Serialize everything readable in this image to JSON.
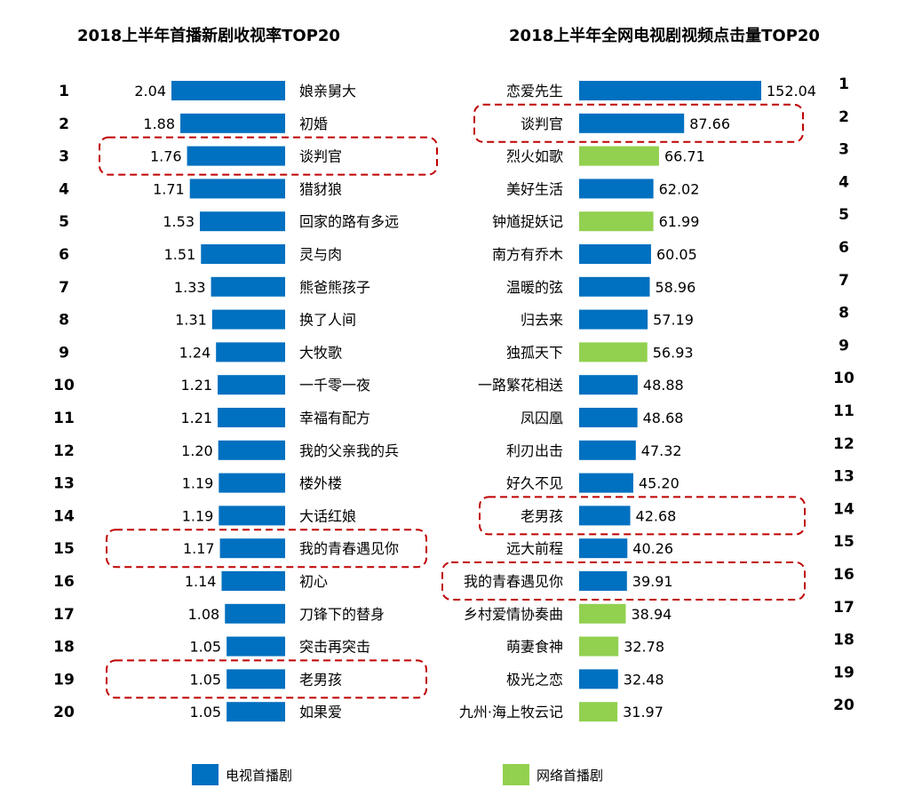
{
  "colors": {
    "tv": "#0070C0",
    "web": "#92D050",
    "highlight": "#C00000"
  },
  "legend": {
    "tv": "电视首播剧",
    "web": "网络首播剧"
  },
  "chart_data": [
    {
      "type": "bar",
      "title": "2018上半年首播新剧收视率TOP20",
      "ranks": [
        "1",
        "2",
        "3",
        "4",
        "5",
        "6",
        "7",
        "8",
        "9",
        "10",
        "11",
        "12",
        "13",
        "14",
        "15",
        "16",
        "17",
        "18",
        "19",
        "20"
      ],
      "categories": [
        "娘亲舅大",
        "初婚",
        "谈判官",
        "猎豺狼",
        "回家的路有多远",
        "灵与肉",
        "熊爸熊孩子",
        "换了人间",
        "大牧歌",
        "一千零一夜",
        "幸福有配方",
        "我的父亲我的兵",
        "楼外楼",
        "大话红娘",
        "我的青春遇见你",
        "初心",
        "刀锋下的替身",
        "突击再突击",
        "老男孩",
        "如果爱"
      ],
      "values": [
        2.04,
        1.88,
        1.76,
        1.71,
        1.53,
        1.51,
        1.33,
        1.31,
        1.24,
        1.21,
        1.21,
        1.2,
        1.19,
        1.19,
        1.17,
        1.14,
        1.08,
        1.05,
        1.05,
        1.05
      ],
      "labels": [
        "2.04",
        "1.88",
        "1.76",
        "1.71",
        "1.53",
        "1.51",
        "1.33",
        "1.31",
        "1.24",
        "1.21",
        "1.21",
        "1.20",
        "1.19",
        "1.19",
        "1.17",
        "1.14",
        "1.08",
        "1.05",
        "1.05",
        "1.05"
      ],
      "kinds": [
        "tv",
        "tv",
        "tv",
        "tv",
        "tv",
        "tv",
        "tv",
        "tv",
        "tv",
        "tv",
        "tv",
        "tv",
        "tv",
        "tv",
        "tv",
        "tv",
        "tv",
        "tv",
        "tv",
        "tv"
      ],
      "highlighted": [
        "谈判官",
        "我的青春遇见你",
        "老男孩"
      ]
    },
    {
      "type": "bar",
      "title": "2018上半年全网电视剧视频点击量TOP20",
      "ranks": [
        "1",
        "2",
        "3",
        "4",
        "5",
        "6",
        "7",
        "8",
        "9",
        "10",
        "11",
        "12",
        "13",
        "14",
        "15",
        "16",
        "17",
        "18",
        "19",
        "20"
      ],
      "categories": [
        "恋爱先生",
        "谈判官",
        "烈火如歌",
        "美好生活",
        "钟馗捉妖记",
        "南方有乔木",
        "温暖的弦",
        "归去来",
        "独孤天下",
        "一路繁花相送",
        "凤囚凰",
        "利刃出击",
        "好久不见",
        "老男孩",
        "远大前程",
        "我的青春遇见你",
        "乡村爱情协奏曲",
        "萌妻食神",
        "极光之恋",
        "九州·海上牧云记"
      ],
      "values": [
        152.04,
        87.66,
        66.71,
        62.02,
        61.99,
        60.05,
        58.96,
        57.19,
        56.93,
        48.88,
        48.68,
        47.32,
        45.2,
        42.68,
        40.26,
        39.91,
        38.94,
        32.78,
        32.48,
        31.97
      ],
      "labels": [
        "152.04",
        "87.66",
        "66.71",
        "62.02",
        "61.99",
        "60.05",
        "58.96",
        "57.19",
        "56.93",
        "48.88",
        "48.68",
        "47.32",
        "45.20",
        "42.68",
        "40.26",
        "39.91",
        "38.94",
        "32.78",
        "32.48",
        "31.97"
      ],
      "kinds": [
        "tv",
        "tv",
        "web",
        "tv",
        "web",
        "tv",
        "tv",
        "tv",
        "web",
        "tv",
        "tv",
        "tv",
        "tv",
        "tv",
        "tv",
        "tv",
        "web",
        "web",
        "tv",
        "web"
      ],
      "highlighted": [
        "谈判官",
        "老男孩",
        "我的青春遇见你"
      ]
    }
  ]
}
